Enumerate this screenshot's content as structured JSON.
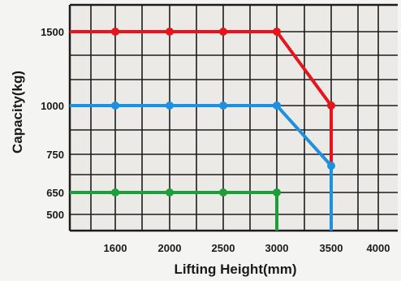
{
  "chart_data": {
    "type": "line",
    "xlabel": "Lifting Height(mm)",
    "ylabel": "Capacity(kg)",
    "x_ticks": [
      1600,
      2000,
      2500,
      3000,
      3500,
      4000
    ],
    "y_ticks": [
      500,
      650,
      750,
      1000,
      1500
    ],
    "grid": true,
    "series": [
      {
        "color": "#e8141c",
        "points": [
          [
            1600,
            1500
          ],
          [
            2000,
            1500
          ],
          [
            2500,
            1500
          ],
          [
            3000,
            1500
          ],
          [
            3500,
            1000
          ]
        ],
        "drop_to_axis_at": 3500
      },
      {
        "color": "#1e90e0",
        "points": [
          [
            1600,
            1000
          ],
          [
            2000,
            1000
          ],
          [
            2500,
            1000
          ],
          [
            3000,
            1000
          ],
          [
            3500,
            720
          ]
        ],
        "drop_to_axis_at": 3500
      },
      {
        "color": "#1e9e3a",
        "points": [
          [
            1600,
            650
          ],
          [
            2000,
            650
          ],
          [
            2500,
            650
          ],
          [
            3000,
            650
          ]
        ],
        "drop_to_axis_at": 3000
      }
    ]
  }
}
